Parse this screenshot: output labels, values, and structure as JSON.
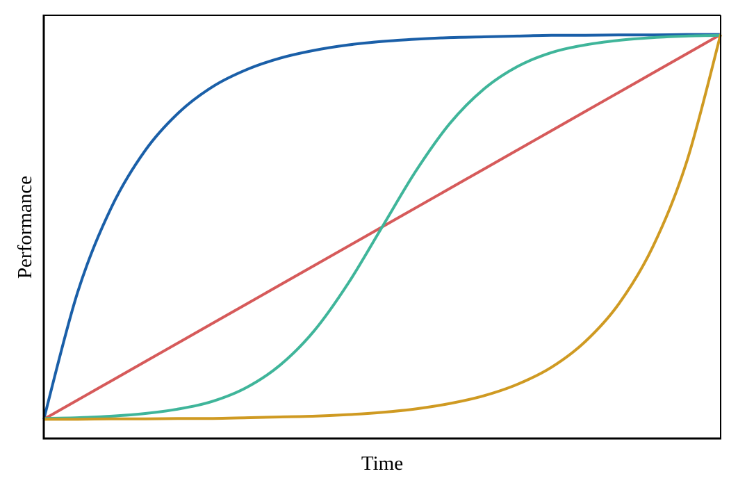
{
  "chart_data": {
    "type": "line",
    "xlabel": "Time",
    "ylabel": "Performance",
    "x": [
      0,
      0.05,
      0.1,
      0.15,
      0.2,
      0.25,
      0.3,
      0.35,
      0.4,
      0.45,
      0.5,
      0.55,
      0.6,
      0.65,
      0.7,
      0.75,
      0.8,
      0.85,
      0.9,
      0.95,
      1
    ],
    "xlim": [
      0,
      1
    ],
    "ylim": [
      -0.05,
      1.05
    ],
    "series": [
      {
        "color": "#1a5fa8",
        "values": [
          0,
          0.33,
          0.551,
          0.699,
          0.798,
          0.865,
          0.909,
          0.939,
          0.959,
          0.973,
          0.982,
          0.988,
          0.992,
          0.994,
          0.996,
          0.998,
          0.998,
          0.999,
          0.999,
          1,
          1
        ]
      },
      {
        "color": "#d65a5a",
        "values": [
          0,
          0.05,
          0.1,
          0.15,
          0.2,
          0.25,
          0.3,
          0.35,
          0.4,
          0.45,
          0.5,
          0.55,
          0.6,
          0.65,
          0.7,
          0.75,
          0.8,
          0.85,
          0.9,
          0.95,
          1
        ]
      },
      {
        "color": "#3fb59a",
        "values": [
          0.002,
          0.004,
          0.008,
          0.015,
          0.027,
          0.047,
          0.083,
          0.142,
          0.231,
          0.354,
          0.5,
          0.646,
          0.769,
          0.858,
          0.917,
          0.953,
          0.973,
          0.985,
          0.992,
          0.996,
          0.998
        ]
      },
      {
        "color": "#cf9a22",
        "values": [
          0,
          0,
          0.001,
          0.001,
          0.002,
          0.002,
          0.004,
          0.006,
          0.008,
          0.012,
          0.018,
          0.027,
          0.041,
          0.061,
          0.091,
          0.135,
          0.202,
          0.301,
          0.449,
          0.67,
          1
        ]
      }
    ]
  }
}
